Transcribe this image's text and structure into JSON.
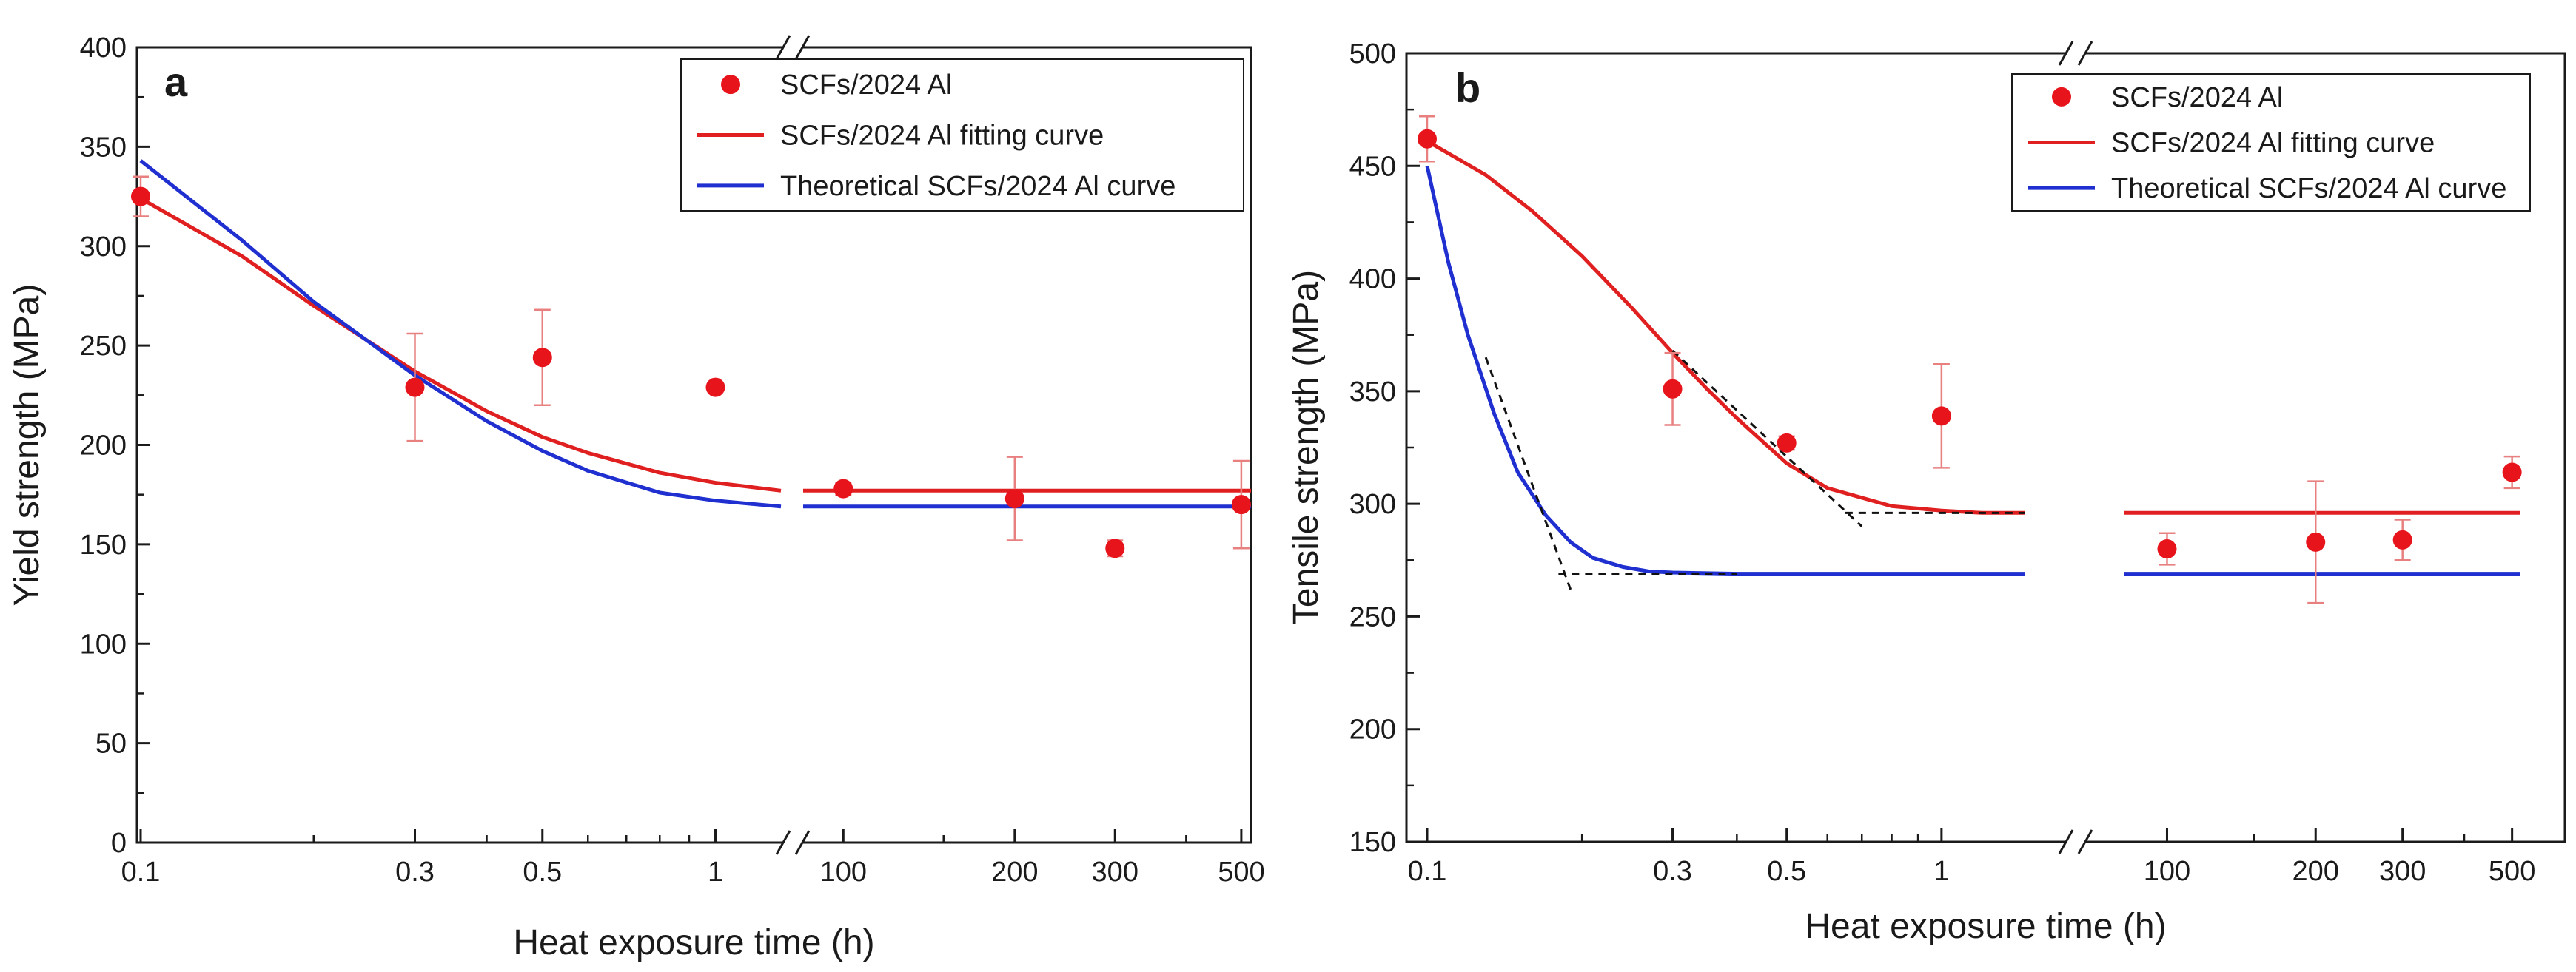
{
  "chart_data": [
    {
      "type": "scatter",
      "panel_label": "a",
      "xlabel": "Heat exposure time (h)",
      "ylabel": "Yield strength (MPa)",
      "x_axis_break": true,
      "x_segments": [
        {
          "scale": "log",
          "range": [
            0.1,
            1.3
          ],
          "ticks": [
            0.1,
            0.3,
            0.5,
            1
          ],
          "tick_labels": [
            "0.1",
            "0.3",
            "0.5",
            "1"
          ]
        },
        {
          "scale": "log",
          "range": [
            85,
            520
          ],
          "ticks": [
            100,
            200,
            300,
            500
          ],
          "tick_labels": [
            "100",
            "200",
            "300",
            "500"
          ]
        }
      ],
      "ylim": [
        0,
        400
      ],
      "yticks": [
        0,
        50,
        100,
        150,
        200,
        250,
        300,
        350,
        400
      ],
      "ytick_labels": [
        "0",
        "50",
        "100",
        "150",
        "200",
        "250",
        "300",
        "350",
        "400"
      ],
      "legend": [
        "SCFs/2024 Al",
        "SCFs/2024 Al fitting curve",
        "Theoretical SCFs/2024 Al curve"
      ],
      "legend_position": "top-right",
      "colors": {
        "points": "#e8141c",
        "fit": "#e02020",
        "theory": "#1f2fd0",
        "error": "#e88080"
      },
      "series": [
        {
          "name": "SCFs/2024 Al",
          "kind": "points",
          "x": [
            0.1,
            0.3,
            0.5,
            1,
            100,
            200,
            300,
            500
          ],
          "y": [
            325,
            229,
            244,
            229,
            178,
            173,
            148,
            170
          ],
          "yerr": [
            10,
            27,
            24,
            2,
            3,
            21,
            4,
            22
          ]
        },
        {
          "name": "SCFs/2024 Al fitting curve",
          "kind": "line",
          "x": [
            0.1,
            0.15,
            0.2,
            0.3,
            0.4,
            0.5,
            0.6,
            0.8,
            1.0,
            1.3,
            85,
            520
          ],
          "y": [
            324,
            295,
            270,
            237,
            217,
            204,
            196,
            186,
            181,
            177,
            177,
            177
          ]
        },
        {
          "name": "Theoretical SCFs/2024 Al curve",
          "kind": "line",
          "x": [
            0.1,
            0.15,
            0.2,
            0.3,
            0.4,
            0.5,
            0.6,
            0.8,
            1.0,
            1.3,
            85,
            520
          ],
          "y": [
            343,
            303,
            272,
            235,
            212,
            197,
            187,
            176,
            172,
            169,
            169,
            169
          ]
        }
      ]
    },
    {
      "type": "scatter",
      "panel_label": "b",
      "xlabel": "Heat exposure time (h)",
      "ylabel": "Tensile strength (MPa)",
      "x_axis_break": true,
      "x_segments": [
        {
          "scale": "log",
          "range": [
            0.1,
            1.45
          ],
          "ticks": [
            0.1,
            0.3,
            0.5,
            1
          ],
          "tick_labels": [
            "0.1",
            "0.3",
            "0.5",
            "1"
          ]
        },
        {
          "scale": "log",
          "range": [
            82,
            520
          ],
          "ticks": [
            100,
            200,
            300,
            500
          ],
          "tick_labels": [
            "100",
            "200",
            "300",
            "500"
          ]
        }
      ],
      "ylim": [
        150,
        500
      ],
      "yticks": [
        150,
        200,
        250,
        300,
        350,
        400,
        450,
        500
      ],
      "ytick_labels": [
        "150",
        "200",
        "250",
        "300",
        "350",
        "400",
        "450",
        "500"
      ],
      "legend": [
        "SCFs/2024 Al",
        "SCFs/2024 Al fitting curve",
        "Theoretical SCFs/2024 Al curve"
      ],
      "legend_position": "top-right",
      "colors": {
        "points": "#e8141c",
        "fit": "#e02020",
        "theory": "#1f2fd0",
        "error": "#e88080",
        "tangent": "#111111"
      },
      "series": [
        {
          "name": "SCFs/2024 Al",
          "kind": "points",
          "x": [
            0.1,
            0.3,
            0.5,
            1,
            100,
            200,
            300,
            500
          ],
          "y": [
            462,
            351,
            327,
            339,
            280,
            283,
            284,
            314
          ],
          "yerr": [
            10,
            16,
            3,
            23,
            7,
            27,
            9,
            7
          ]
        },
        {
          "name": "SCFs/2024 Al fitting curve",
          "kind": "line",
          "x": [
            0.1,
            0.13,
            0.16,
            0.2,
            0.25,
            0.3,
            0.35,
            0.4,
            0.5,
            0.6,
            0.8,
            1.0,
            1.2,
            1.45,
            82,
            520
          ],
          "y": [
            461,
            446,
            430,
            410,
            387,
            367,
            351,
            338,
            318,
            307,
            299,
            297,
            296,
            296,
            296,
            296
          ]
        },
        {
          "name": "Theoretical SCFs/2024 Al curve",
          "kind": "line",
          "x": [
            0.1,
            0.11,
            0.12,
            0.135,
            0.15,
            0.17,
            0.19,
            0.21,
            0.24,
            0.27,
            0.3,
            0.4,
            0.6,
            1.0,
            1.45,
            82,
            520
          ],
          "y": [
            450,
            407,
            375,
            340,
            314,
            295,
            283,
            276,
            272,
            270,
            269.5,
            269,
            269,
            269,
            269,
            269,
            269
          ]
        },
        {
          "name": "tangent-fit",
          "kind": "dashed",
          "x": [
            0.3,
            0.7
          ],
          "y": [
            368,
            290
          ]
        },
        {
          "name": "plateau-fit",
          "kind": "dashed",
          "x": [
            0.65,
            1.45
          ],
          "y": [
            296,
            296
          ]
        },
        {
          "name": "tangent-theory",
          "kind": "dashed",
          "x": [
            0.13,
            0.19
          ],
          "y": [
            365,
            262
          ]
        },
        {
          "name": "plateau-theory",
          "kind": "dashed",
          "x": [
            0.18,
            0.4
          ],
          "y": [
            269,
            269
          ]
        }
      ]
    }
  ]
}
